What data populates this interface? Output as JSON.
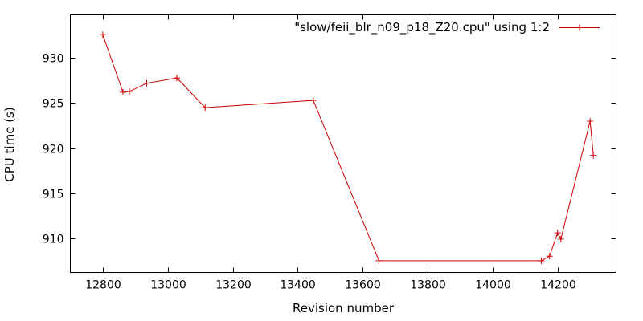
{
  "chart_data": {
    "type": "line",
    "xlabel": "Revision number",
    "ylabel": "CPU time (s)",
    "xlim": [
      12700,
      14380
    ],
    "ylim": [
      906.2,
      934.8
    ],
    "xticks": [
      12800,
      13000,
      13200,
      13400,
      13600,
      13800,
      14000,
      14200
    ],
    "yticks": [
      910,
      915,
      920,
      925,
      930
    ],
    "grid": false,
    "legend_position": "top-right",
    "series": [
      {
        "name": "\"slow/feii_blr_n09_p18_Z20.cpu\" using 1:2",
        "color": "#cc0000",
        "marker": "plus",
        "x": [
          12800,
          12862,
          12882,
          12935,
          13028,
          13115,
          13448,
          13650,
          14150,
          14175,
          14200,
          14210,
          14300,
          14310
        ],
        "y": [
          932.6,
          926.2,
          926.3,
          927.2,
          927.8,
          924.5,
          925.3,
          907.5,
          907.5,
          908.0,
          910.6,
          909.9,
          923.0,
          919.2
        ]
      }
    ]
  }
}
